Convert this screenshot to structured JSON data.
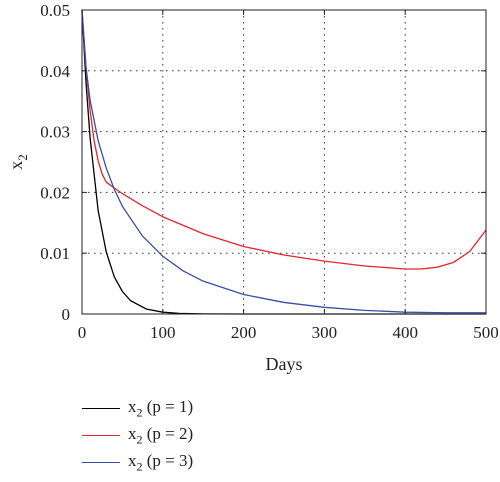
{
  "chart_data": {
    "type": "line",
    "xlabel": "Days",
    "ylabel": "x",
    "ylabel_sub": "2",
    "xlim": [
      0,
      500
    ],
    "ylim": [
      0,
      0.05
    ],
    "xticks": [
      "0",
      "100",
      "200",
      "300",
      "400",
      "500"
    ],
    "yticks": [
      "0",
      "0.01",
      "0.02",
      "0.03",
      "0.04",
      "0.05"
    ],
    "grid": "dotted",
    "legend_position": "below",
    "series": [
      {
        "name": "x2 (p = 1)",
        "label_main": "x",
        "label_sub": "2",
        "label_rest": " (p = 1)",
        "color": "#000000",
        "x": [
          0,
          5,
          10,
          20,
          30,
          40,
          50,
          60,
          80,
          100,
          120,
          150,
          200,
          300,
          400,
          500
        ],
        "y": [
          0.05,
          0.038,
          0.029,
          0.017,
          0.0102,
          0.0061,
          0.0037,
          0.0022,
          0.0008,
          0.0003,
          0.0001,
          2e-05,
          0.0,
          0.0,
          0.0,
          0.0
        ]
      },
      {
        "name": "x2 (p = 2)",
        "label_main": "x",
        "label_sub": "2",
        "label_rest": " (p = 2)",
        "color": "#e8242b",
        "x": [
          0,
          5,
          10,
          15,
          20,
          25,
          30,
          40,
          50,
          75,
          100,
          150,
          200,
          250,
          300,
          350,
          400,
          420,
          440,
          460,
          480,
          500
        ],
        "y": [
          0.05,
          0.0405,
          0.0335,
          0.0285,
          0.0252,
          0.023,
          0.0217,
          0.0207,
          0.0198,
          0.0178,
          0.016,
          0.0132,
          0.0111,
          0.0097,
          0.0087,
          0.0079,
          0.0074,
          0.0074,
          0.0077,
          0.0085,
          0.0103,
          0.0138
        ]
      },
      {
        "name": "x2 (p = 3)",
        "label_main": "x",
        "label_sub": "2",
        "label_rest": " (p = 3)",
        "color": "#3a4ea8",
        "x": [
          0,
          5,
          10,
          20,
          30,
          40,
          50,
          75,
          100,
          125,
          150,
          200,
          250,
          300,
          350,
          400,
          450,
          500
        ],
        "y": [
          0.05,
          0.0405,
          0.0352,
          0.0285,
          0.024,
          0.0205,
          0.0177,
          0.0128,
          0.0095,
          0.0071,
          0.0054,
          0.0032,
          0.0019,
          0.0011,
          0.0006,
          0.0003,
          0.0002,
          0.0002
        ]
      }
    ]
  }
}
